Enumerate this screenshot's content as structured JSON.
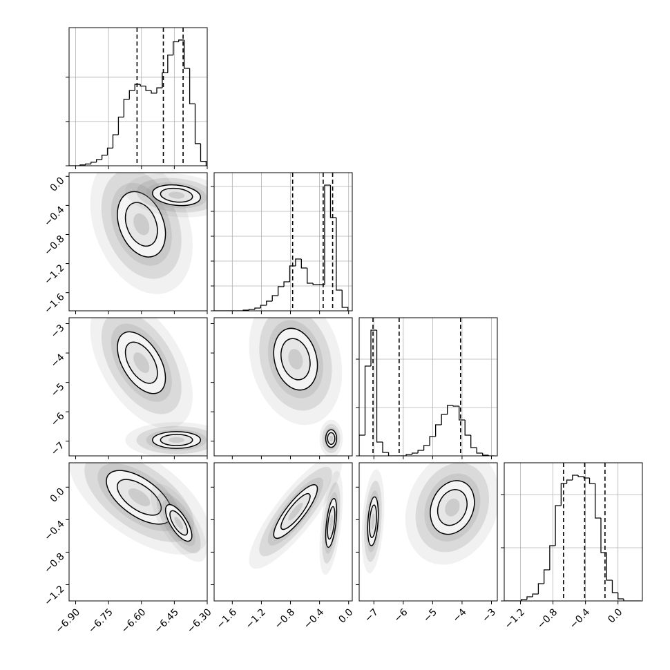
{
  "chart_data": [
    {
      "type": "histogram",
      "bins": [
        -6.93,
        -6.905,
        -6.88,
        -6.855,
        -6.83,
        -6.805,
        -6.78,
        -6.755,
        -6.73,
        -6.705,
        -6.68,
        -6.655,
        -6.63,
        -6.605,
        -6.58,
        -6.555,
        -6.53,
        -6.505,
        -6.48,
        -6.455,
        -6.43,
        -6.405,
        -6.38,
        -6.355,
        -6.33,
        -6.305
      ],
      "counts": [
        0,
        0,
        1,
        2,
        4,
        7,
        12,
        20,
        35,
        55,
        75,
        85,
        92,
        90,
        85,
        82,
        88,
        105,
        125,
        140,
        142,
        110,
        70,
        25,
        5
      ],
      "quantiles": [
        -6.62,
        -6.5,
        -6.41
      ],
      "xlim": [
        -6.93,
        -6.3
      ],
      "xticks": [
        -6.9,
        -6.75,
        -6.6,
        -6.45,
        -6.3
      ],
      "ylim": [
        0,
        156
      ],
      "yticks": [
        0,
        50,
        100
      ],
      "grid": true,
      "color": "#000000"
    },
    {
      "type": "density",
      "modes": [
        {
          "x": -6.6,
          "y": -0.66,
          "sx": 0.073,
          "sy": 0.3,
          "corr": -0.3
        },
        {
          "x": -6.44,
          "y": -0.26,
          "sx": 0.073,
          "sy": 0.095,
          "corr": -0.2
        }
      ],
      "xlim": [
        -6.93,
        -6.3
      ],
      "xticks": [
        -6.9,
        -6.75,
        -6.6,
        -6.45,
        -6.3
      ],
      "ylim": [
        -1.85,
        0.05
      ],
      "yticks": [
        {
          "value": 0,
          "label": "0.0"
        },
        {
          "value": -0.4,
          "label": "−0.4"
        },
        {
          "value": -0.8,
          "label": "−0.8"
        },
        {
          "value": -1.2,
          "label": "−1.2"
        },
        {
          "value": -1.6,
          "label": "−1.6"
        }
      ],
      "color": "#000000"
    },
    {
      "type": "histogram",
      "bins": [
        -1.85,
        -1.77,
        -1.69,
        -1.61,
        -1.53,
        -1.45,
        -1.37,
        -1.29,
        -1.21,
        -1.13,
        -1.05,
        -0.97,
        -0.89,
        -0.81,
        -0.73,
        -0.65,
        -0.57,
        -0.49,
        -0.41,
        -0.33,
        -0.25,
        -0.17,
        -0.09,
        -0.01
      ],
      "counts": [
        0,
        0,
        0,
        0,
        0,
        1,
        2,
        4,
        8,
        14,
        22,
        35,
        42,
        65,
        75,
        62,
        40,
        38,
        38,
        182,
        135,
        30,
        5
      ],
      "quantiles": [
        -0.77,
        -0.35,
        -0.22
      ],
      "xlim": [
        -1.85,
        0.05
      ],
      "xticks": [
        -1.6,
        -1.2,
        -0.8,
        -0.4,
        0
      ],
      "ylim": [
        0,
        200
      ],
      "yticks": [
        0,
        36,
        72,
        108,
        144,
        180
      ],
      "grid": true,
      "color": "#000000"
    },
    {
      "type": "density",
      "modes": [
        {
          "x": -6.6,
          "y": -4.33,
          "sx": 0.073,
          "sy": 0.7,
          "corr": -0.5
        },
        {
          "x": -6.44,
          "y": -6.96,
          "sx": 0.073,
          "sy": 0.19,
          "corr": 0
        }
      ],
      "xlim": [
        -6.93,
        -6.3
      ],
      "xticks": [
        -6.9,
        -6.75,
        -6.6,
        -6.45,
        -6.3
      ],
      "ylim": [
        -7.5,
        -2.8
      ],
      "yticks": [
        {
          "value": -3,
          "label": "−3"
        },
        {
          "value": -4,
          "label": "−4"
        },
        {
          "value": -5,
          "label": "−5"
        },
        {
          "value": -6,
          "label": "−6"
        },
        {
          "value": -7,
          "label": "−7"
        }
      ],
      "color": "#000000"
    },
    {
      "type": "density",
      "modes": [
        {
          "x": -0.73,
          "y": -4.21,
          "sx": 0.2,
          "sy": 0.7,
          "corr": -0.2
        },
        {
          "x": -0.24,
          "y": -6.91,
          "sx": 0.05,
          "sy": 0.2,
          "corr": 0
        }
      ],
      "xlim": [
        -1.85,
        0.05
      ],
      "xticks": [
        -1.6,
        -1.2,
        -0.8,
        -0.4,
        0
      ],
      "ylim": [
        -7.5,
        -2.8
      ],
      "yticks": [
        -3,
        -4,
        -5,
        -6,
        -7
      ],
      "color": "#000000"
    },
    {
      "type": "histogram",
      "bins": [
        -7.5,
        -7.3,
        -7.1,
        -6.9,
        -6.7,
        -6.5,
        -6.3,
        -6.1,
        -5.9,
        -5.7,
        -5.5,
        -5.3,
        -5.1,
        -4.9,
        -4.7,
        -4.5,
        -4.3,
        -4.1,
        -3.9,
        -3.7,
        -3.5,
        -3.3,
        -3.1,
        -2.9
      ],
      "counts": [
        30,
        130,
        182,
        20,
        5,
        0,
        0,
        0,
        2,
        4,
        8,
        15,
        28,
        45,
        60,
        73,
        72,
        52,
        30,
        12,
        4,
        1,
        0
      ],
      "quantiles": [
        -7.03,
        -6.14,
        -4.05
      ],
      "xlim": [
        -7.5,
        -2.8
      ],
      "xticks": [
        -7,
        -6,
        -5,
        -4,
        -3
      ],
      "ylim": [
        0,
        200
      ],
      "yticks": [
        0,
        70,
        140
      ],
      "grid": true,
      "color": "#000000"
    },
    {
      "type": "density",
      "modes": [
        {
          "x": -6.61,
          "y": -0.125,
          "sx": 0.1,
          "sy": 0.22,
          "corr": -0.6
        },
        {
          "x": -6.43,
          "y": -0.44,
          "sx": 0.04,
          "sy": 0.15,
          "corr": -0.7
        }
      ],
      "xlim": [
        -6.93,
        -6.3
      ],
      "xticks": [
        {
          "value": -6.9,
          "label": "−6.90"
        },
        {
          "value": -6.75,
          "label": "−6.75"
        },
        {
          "value": -6.6,
          "label": "−6.60"
        },
        {
          "value": -6.45,
          "label": "−6.45"
        },
        {
          "value": -6.3,
          "label": "−6.30"
        }
      ],
      "ylim": [
        -1.4,
        0.3
      ],
      "yticks": [
        {
          "value": 0,
          "label": "0.0"
        },
        {
          "value": -0.4,
          "label": "−0.4"
        },
        {
          "value": -0.8,
          "label": "−0.8"
        },
        {
          "value": -1.2,
          "label": "−1.2"
        }
      ],
      "color": "#000000"
    },
    {
      "type": "density",
      "modes": [
        {
          "x": -0.73,
          "y": -0.3,
          "sx": 0.2,
          "sy": 0.22,
          "corr": 0.85
        },
        {
          "x": -0.24,
          "y": -0.44,
          "sx": 0.05,
          "sy": 0.2,
          "corr": 0.5
        }
      ],
      "xlim": [
        -1.85,
        0.05
      ],
      "xticks": [
        {
          "value": -1.6,
          "label": "−1.6"
        },
        {
          "value": -1.2,
          "label": "−1.2"
        },
        {
          "value": -0.8,
          "label": "−0.8"
        },
        {
          "value": -0.4,
          "label": "−0.4"
        },
        {
          "value": 0,
          "label": "0.0"
        }
      ],
      "ylim": [
        -1.4,
        0.3
      ],
      "yticks": [
        0,
        -0.4,
        -0.8,
        -1.2
      ],
      "color": "#000000"
    },
    {
      "type": "density",
      "modes": [
        {
          "x": -7.03,
          "y": -0.42,
          "sx": 0.12,
          "sy": 0.2,
          "corr": 0.3
        },
        {
          "x": -4.33,
          "y": -0.25,
          "sx": 0.5,
          "sy": 0.22,
          "corr": 0.2
        }
      ],
      "xlim": [
        -7.5,
        -2.8
      ],
      "xticks": [
        {
          "value": -7,
          "label": "−7"
        },
        {
          "value": -6,
          "label": "−6"
        },
        {
          "value": -5,
          "label": "−5"
        },
        {
          "value": -4,
          "label": "−4"
        },
        {
          "value": -3,
          "label": "−3"
        }
      ],
      "ylim": [
        -1.4,
        0.3
      ],
      "yticks": [
        0,
        -0.4,
        -0.8,
        -1.2
      ],
      "color": "#000000"
    },
    {
      "type": "histogram",
      "bins": [
        -1.4,
        -1.33,
        -1.26,
        -1.19,
        -1.12,
        -1.05,
        -0.98,
        -0.91,
        -0.84,
        -0.77,
        -0.7,
        -0.63,
        -0.56,
        -0.49,
        -0.42,
        -0.35,
        -0.28,
        -0.21,
        -0.14,
        -0.07,
        0,
        0.07,
        0.14,
        0.21,
        0.28
      ],
      "counts": [
        0,
        0,
        0,
        2,
        6,
        10,
        25,
        45,
        80,
        138,
        170,
        175,
        182,
        180,
        178,
        170,
        120,
        70,
        30,
        12,
        3,
        0,
        0,
        0
      ],
      "quantiles": [
        -0.67,
        -0.41,
        -0.16
      ],
      "xlim": [
        -1.4,
        0.3
      ],
      "xticks": [
        {
          "value": -1.2,
          "label": "−1.2"
        },
        {
          "value": -0.8,
          "label": "−0.8"
        },
        {
          "value": -0.4,
          "label": "−0.4"
        },
        {
          "value": 0,
          "label": "0.0"
        }
      ],
      "ylim": [
        0,
        200
      ],
      "yticks": [
        0,
        77,
        154
      ],
      "grid": true,
      "color": "#000000"
    }
  ]
}
